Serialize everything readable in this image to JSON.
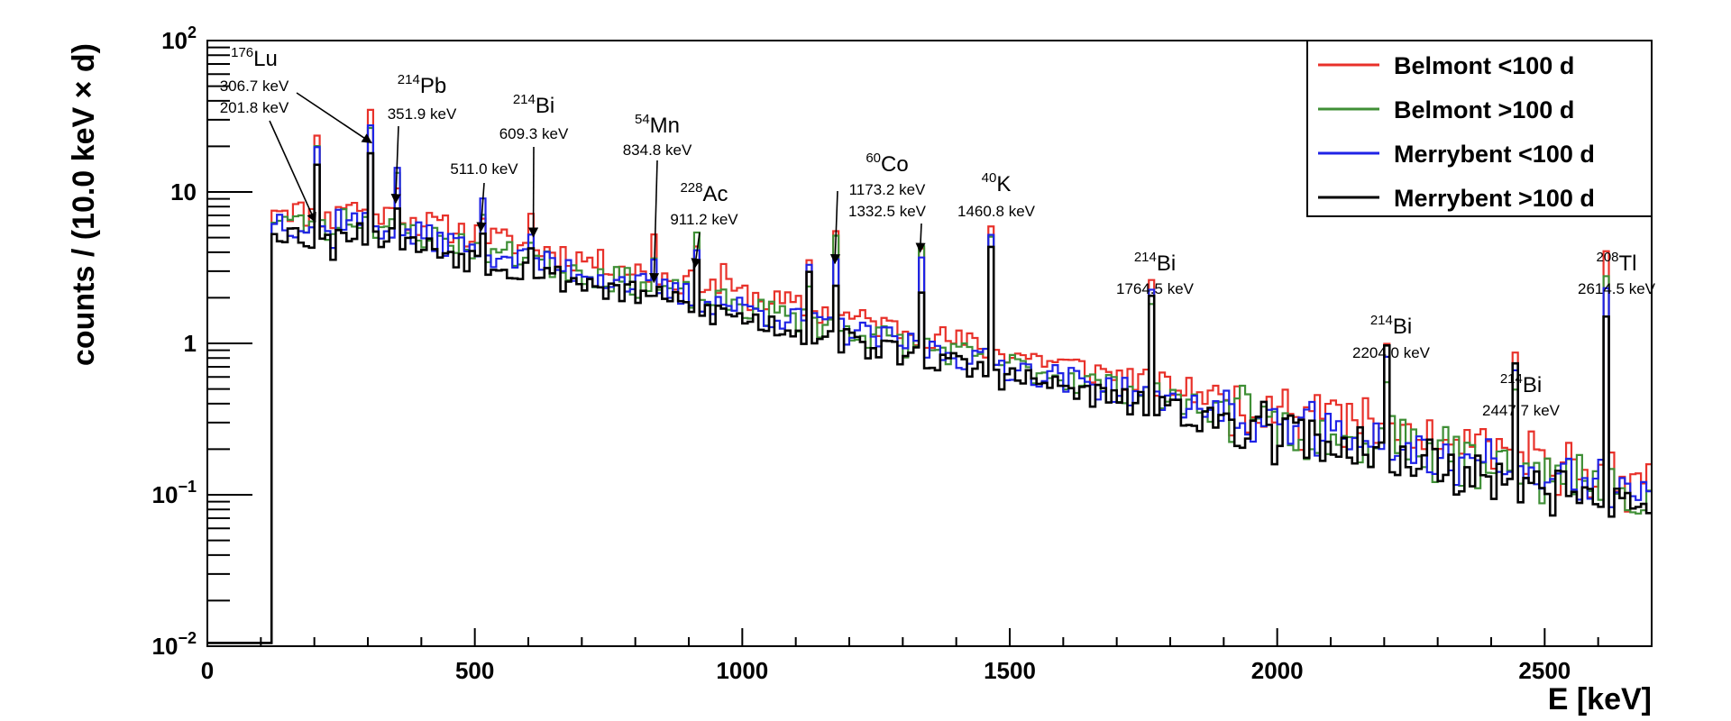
{
  "chart_data": {
    "type": "step-histogram",
    "title": "",
    "xlabel": "E [keV]",
    "ylabel": "counts / (10.0 keV × d)",
    "xlim": [
      0,
      2700
    ],
    "ylim": [
      0.01,
      100
    ],
    "yscale": "log",
    "bin_width_keV": 10,
    "x_ticks": [
      {
        "value": 0,
        "label": "0"
      },
      {
        "value": 500,
        "label": "500"
      },
      {
        "value": 1000,
        "label": "1000"
      },
      {
        "value": 1500,
        "label": "1500"
      },
      {
        "value": 2000,
        "label": "2000"
      },
      {
        "value": 2500,
        "label": "2500"
      }
    ],
    "y_ticks": [
      {
        "value": 0.01,
        "base": "10",
        "exp": "−2"
      },
      {
        "value": 0.1,
        "base": "10",
        "exp": "−1"
      },
      {
        "value": 1,
        "base": "1",
        "exp": ""
      },
      {
        "value": 10,
        "base": "10",
        "exp": ""
      },
      {
        "value": 100,
        "base": "10",
        "exp": "2"
      }
    ],
    "legend_position": "top-right",
    "series": [
      {
        "name": "Belmont <100 d",
        "color": "#e8312a",
        "scale": 1.18,
        "seed": 11,
        "peaks": [
          [
            200,
            4.1
          ],
          [
            305,
            4.3
          ],
          [
            355,
            1.9
          ],
          [
            510,
            1.5
          ],
          [
            605,
            1.6
          ],
          [
            835,
            1.8
          ],
          [
            910,
            2.2
          ],
          [
            960,
            1.6
          ],
          [
            1120,
            2.0
          ],
          [
            1175,
            4.0
          ],
          [
            1330,
            4.6
          ],
          [
            1460,
            6.0
          ],
          [
            1765,
            4.2
          ],
          [
            2105,
            1.6
          ],
          [
            2205,
            4.0
          ],
          [
            2445,
            4.5
          ],
          [
            2615,
            22.0
          ]
        ]
      },
      {
        "name": "Belmont >100 d",
        "color": "#3f8f36",
        "scale": 0.98,
        "seed": 23,
        "peaks": [
          [
            200,
            4.0
          ],
          [
            305,
            4.7
          ],
          [
            355,
            2.0
          ],
          [
            510,
            1.4
          ],
          [
            605,
            1.5
          ],
          [
            835,
            1.4
          ],
          [
            910,
            2.2
          ],
          [
            1120,
            2.0
          ],
          [
            1175,
            3.8
          ],
          [
            1330,
            4.6
          ],
          [
            1460,
            6.6
          ],
          [
            1765,
            4.3
          ],
          [
            2205,
            4.1
          ],
          [
            2315,
            1.9
          ],
          [
            2445,
            3.7
          ],
          [
            2615,
            21.0
          ]
        ]
      },
      {
        "name": "Merrybent <100 d",
        "color": "#1f23e6",
        "scale": 0.96,
        "seed": 37,
        "peaks": [
          [
            200,
            3.8
          ],
          [
            305,
            4.6
          ],
          [
            355,
            2.2
          ],
          [
            510,
            1.8
          ],
          [
            605,
            1.6
          ],
          [
            835,
            1.3
          ],
          [
            910,
            2.0
          ],
          [
            1120,
            2.5
          ],
          [
            1175,
            3.2
          ],
          [
            1330,
            3.9
          ],
          [
            1460,
            7.0
          ],
          [
            1765,
            4.3
          ],
          [
            2205,
            4.3
          ],
          [
            2445,
            3.9
          ],
          [
            2615,
            22.0
          ]
        ]
      },
      {
        "name": "Merrybent >100 d",
        "color": "#000000",
        "scale": 0.82,
        "seed": 53,
        "peaks": [
          [
            200,
            3.2
          ],
          [
            305,
            3.9
          ],
          [
            355,
            2.0
          ],
          [
            510,
            1.6
          ],
          [
            605,
            1.7
          ],
          [
            835,
            1.2
          ],
          [
            910,
            1.8
          ],
          [
            1120,
            2.6
          ],
          [
            1175,
            2.7
          ],
          [
            1330,
            3.2
          ],
          [
            1460,
            6.5
          ],
          [
            1765,
            5.2
          ],
          [
            2205,
            5.0
          ],
          [
            2445,
            4.0
          ],
          [
            2615,
            23.0
          ]
        ]
      }
    ],
    "annotations": [
      {
        "isotope": {
          "mass": "176",
          "name": "Lu"
        },
        "energies": [
          "306.7 keV",
          "201.8 keV"
        ],
        "arrows": [
          [
            201.8,
            6.0
          ],
          [
            306.7,
            20.0
          ]
        ]
      },
      {
        "isotope": {
          "mass": "214",
          "name": "Pb"
        },
        "energies": [
          "351.9 keV"
        ],
        "arrows": [
          [
            351.9,
            8.0
          ]
        ]
      },
      {
        "isotope": null,
        "energies": [
          "511.0 keV"
        ],
        "arrows": [
          [
            511.0,
            5.2
          ]
        ]
      },
      {
        "isotope": {
          "mass": "214",
          "name": "Bi"
        },
        "energies": [
          "609.3 keV"
        ],
        "arrows": [
          [
            609.3,
            4.8
          ]
        ]
      },
      {
        "isotope": {
          "mass": "54",
          "name": "Mn"
        },
        "energies": [
          "834.8 keV"
        ],
        "arrows": [
          [
            834.8,
            2.4
          ]
        ]
      },
      {
        "isotope": {
          "mass": "228",
          "name": "Ac"
        },
        "energies": [
          "911.2 keV"
        ],
        "arrows": [
          [
            911.2,
            3.0
          ]
        ]
      },
      {
        "isotope": {
          "mass": "60",
          "name": "Co"
        },
        "energies": [
          "1173.2 keV",
          "1332.5 keV"
        ],
        "arrows": [
          [
            1173.2,
            3.2
          ],
          [
            1332.5,
            3.8
          ]
        ]
      },
      {
        "isotope": {
          "mass": "40",
          "name": "K"
        },
        "energies": [
          "1460.8 keV"
        ],
        "arrows": []
      },
      {
        "isotope": {
          "mass": "214",
          "name": "Bi"
        },
        "energies": [
          "1764.5 keV"
        ],
        "arrows": []
      },
      {
        "isotope": {
          "mass": "214",
          "name": "Bi"
        },
        "energies": [
          "2204.0 keV"
        ],
        "arrows": []
      },
      {
        "isotope": {
          "mass": "214",
          "name": "Bi"
        },
        "energies": [
          "2447.7 keV"
        ],
        "arrows": []
      },
      {
        "isotope": {
          "mass": "208",
          "name": "Tl"
        },
        "energies": [
          "2614.5 keV"
        ],
        "arrows": []
      }
    ]
  }
}
